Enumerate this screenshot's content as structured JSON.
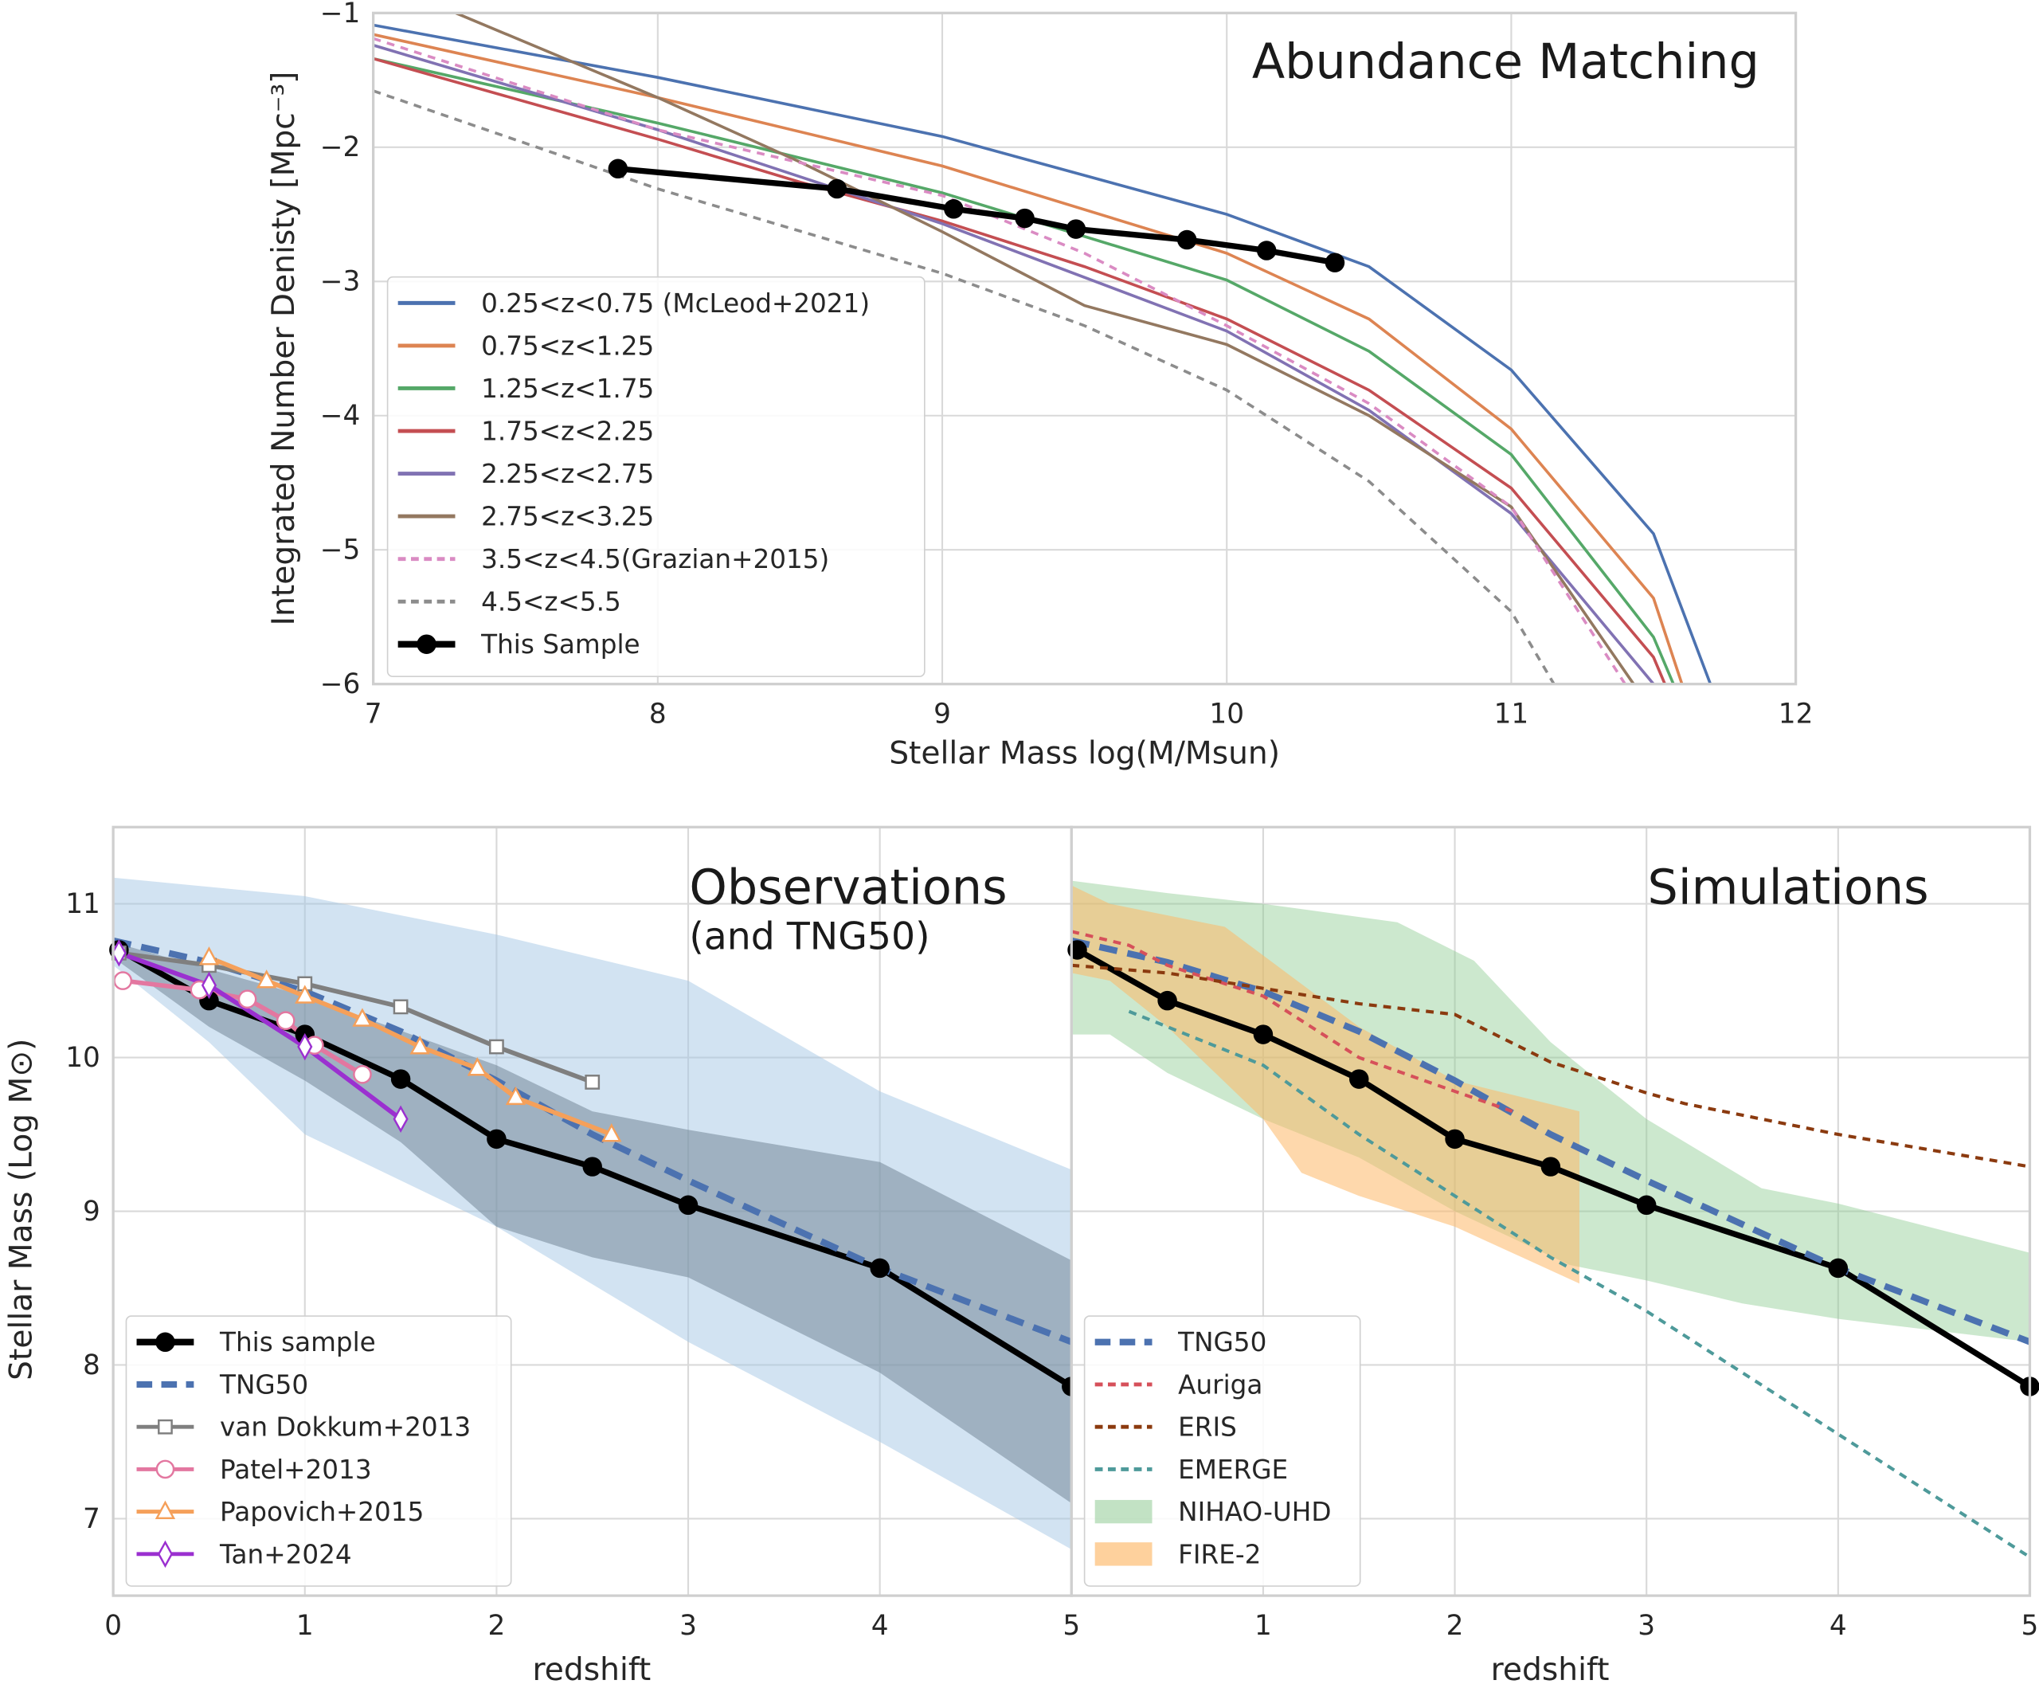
{
  "chart_data": [
    {
      "type": "line",
      "title": "Abundance Matching",
      "xlabel": "Stellar Mass log(M/Msun)",
      "ylabel": "Integrated Number Denisty [Mpc⁻³]",
      "xlim": [
        7,
        12
      ],
      "ylim": [
        -6,
        -1
      ],
      "xticks": [
        7,
        8,
        9,
        10,
        11,
        12
      ],
      "yticks": [
        -6,
        -5,
        -4,
        -3,
        -2,
        -1
      ],
      "grid": true,
      "legend_position": "center-left",
      "series": [
        {
          "name": "0.25<z<0.75 (McLeod+2021)",
          "color": "#4c72b0",
          "style": "solid",
          "x": [
            7,
            8,
            9,
            10,
            10.5,
            11,
            11.5,
            11.7
          ],
          "y": [
            -1.09,
            -1.48,
            -1.92,
            -2.5,
            -2.89,
            -3.66,
            -4.88,
            -6
          ]
        },
        {
          "name": "0.75<z<1.25",
          "color": "#dd8452",
          "style": "solid",
          "x": [
            7,
            8,
            9,
            10,
            10.5,
            11,
            11.5,
            11.6
          ],
          "y": [
            -1.16,
            -1.63,
            -2.14,
            -2.79,
            -3.28,
            -4.1,
            -5.36,
            -6
          ]
        },
        {
          "name": "1.25<z<1.75",
          "color": "#55a868",
          "style": "solid",
          "x": [
            7,
            8,
            9,
            10,
            10.5,
            11,
            11.5,
            11.57
          ],
          "y": [
            -1.34,
            -1.82,
            -2.34,
            -2.99,
            -3.52,
            -4.29,
            -5.65,
            -6
          ]
        },
        {
          "name": "1.75<z<2.25",
          "color": "#c44e52",
          "style": "solid",
          "x": [
            7,
            8,
            8.5,
            9,
            9.5,
            10,
            10.5,
            11,
            11.5,
            11.54
          ],
          "y": [
            -1.34,
            -1.94,
            -2.26,
            -2.55,
            -2.89,
            -3.28,
            -3.81,
            -4.54,
            -5.8,
            -6
          ]
        },
        {
          "name": "2.25<z<2.75",
          "color": "#8172b3",
          "style": "solid",
          "x": [
            7,
            8,
            9,
            10,
            10.5,
            11,
            11.5
          ],
          "y": [
            -1.24,
            -1.87,
            -2.57,
            -3.37,
            -3.96,
            -4.73,
            -6
          ]
        },
        {
          "name": "2.75<z<3.25",
          "color": "#937860",
          "style": "solid",
          "x": [
            7.29,
            8,
            8.5,
            9,
            9.5,
            10,
            10.5,
            11,
            11.43
          ],
          "y": [
            -1,
            -1.63,
            -2.11,
            -2.63,
            -3.18,
            -3.47,
            -4.0,
            -4.68,
            -6
          ]
        },
        {
          "name": "3.5<z<4.5(Grazian+2015)",
          "color": "#da8bc3",
          "style": "dashed",
          "x": [
            7,
            8,
            9,
            9.5,
            10,
            10.5,
            11,
            11.4
          ],
          "y": [
            -1.19,
            -1.87,
            -2.36,
            -2.79,
            -3.33,
            -3.91,
            -4.68,
            -6
          ]
        },
        {
          "name": "4.5<z<5.5",
          "color": "#8c8c8c",
          "style": "dashed",
          "x": [
            7,
            8,
            9,
            9.5,
            10,
            10.5,
            11,
            11.15
          ],
          "y": [
            -1.58,
            -2.31,
            -2.94,
            -3.33,
            -3.81,
            -4.49,
            -5.46,
            -6
          ]
        },
        {
          "name": "This Sample",
          "color": "#000000",
          "style": "solid-marker",
          "marker": "circle",
          "x": [
            7.86,
            8.63,
            9.04,
            9.29,
            9.47,
            9.86,
            10.14,
            10.38
          ],
          "y": [
            -2.16,
            -2.31,
            -2.46,
            -2.53,
            -2.61,
            -2.69,
            -2.77,
            -2.86
          ]
        }
      ]
    },
    {
      "type": "line",
      "title": "Observations",
      "subtitle": "(and TNG50)",
      "xlabel": "redshift",
      "ylabel": "Stellar Mass (Log M⊙)",
      "xlim": [
        0,
        5
      ],
      "ylim": [
        6.5,
        11.5
      ],
      "xticks": [
        0,
        1,
        2,
        3,
        4,
        5
      ],
      "yticks": [
        7,
        8,
        9,
        10,
        11
      ],
      "grid": true,
      "legend_position": "lower-left",
      "bands": [
        {
          "color": "#a6c8e6",
          "opacity": 0.5,
          "x": [
            0,
            1,
            2,
            3,
            4,
            5
          ],
          "upper": [
            11.17,
            11.05,
            10.8,
            10.5,
            9.78,
            9.27
          ],
          "x_lower": [
            0,
            0.5,
            1,
            2,
            3,
            4,
            5
          ],
          "lower": [
            10.6,
            10.1,
            9.5,
            8.9,
            8.15,
            7.5,
            6.8
          ]
        },
        {
          "color": "#6b7f8f",
          "opacity": 0.5,
          "x": [
            0,
            1,
            2,
            2.5,
            3,
            4,
            5
          ],
          "upper": [
            10.75,
            10.4,
            9.95,
            9.65,
            9.53,
            9.32,
            8.68
          ],
          "x_lower": [
            0,
            0.5,
            1,
            1.5,
            2,
            2.5,
            3,
            4,
            5
          ],
          "lower": [
            10.65,
            10.2,
            9.85,
            9.45,
            8.9,
            8.7,
            8.57,
            7.95,
            7.1
          ]
        }
      ],
      "series": [
        {
          "name": "This sample",
          "color": "#000000",
          "style": "solid",
          "marker": "circle",
          "x": [
            0.03,
            0.5,
            1,
            1.5,
            2,
            2.5,
            3,
            4,
            5
          ],
          "y": [
            10.7,
            10.37,
            10.15,
            9.86,
            9.47,
            9.29,
            9.04,
            8.63,
            7.86
          ]
        },
        {
          "name": "TNG50",
          "color": "#4c72b0",
          "style": "bigdash",
          "x": [
            0,
            0.5,
            1,
            1.5,
            2,
            2.5,
            3,
            4,
            5
          ],
          "y": [
            10.76,
            10.62,
            10.43,
            10.17,
            9.85,
            9.5,
            9.2,
            8.63,
            8.15
          ]
        },
        {
          "name": "van Dokkum+2013",
          "color": "#7f7f7f",
          "style": "solid",
          "marker": "square",
          "x": [
            0.03,
            0.5,
            1,
            1.5,
            2,
            2.5
          ],
          "y": [
            10.68,
            10.6,
            10.48,
            10.33,
            10.07,
            9.84
          ]
        },
        {
          "name": "Patel+2013",
          "color": "#e377a0",
          "style": "solid",
          "marker": "circle-open",
          "x": [
            0.05,
            0.45,
            0.7,
            0.9,
            1.05,
            1.3
          ],
          "y": [
            10.5,
            10.44,
            10.38,
            10.24,
            10.08,
            9.89
          ]
        },
        {
          "name": "Papovich+2015",
          "color": "#f5a05a",
          "style": "solid",
          "marker": "triangle",
          "x": [
            0.5,
            0.8,
            1,
            1.3,
            1.6,
            1.9,
            2.1,
            2.6
          ],
          "y": [
            10.65,
            10.5,
            10.4,
            10.25,
            10.07,
            9.93,
            9.74,
            9.5
          ]
        },
        {
          "name": "Tan+2024",
          "color": "#9b30d0",
          "style": "solid",
          "marker": "diamond",
          "x": [
            0.03,
            0.5,
            1,
            1.5
          ],
          "y": [
            10.68,
            10.47,
            10.07,
            9.6
          ]
        }
      ]
    },
    {
      "type": "line",
      "title": "Simulations",
      "xlabel": "redshift",
      "xlim": [
        0,
        5
      ],
      "ylim": [
        6.5,
        11.5
      ],
      "xticks": [
        0,
        1,
        2,
        3,
        4,
        5
      ],
      "grid": true,
      "legend_position": "lower-left",
      "bands": [
        {
          "name": "NIHAO-UHD",
          "color": "#8fcb93",
          "opacity": 0.45,
          "x": [
            0,
            0.5,
            1,
            1.7,
            2.1,
            2.5,
            3,
            3.6,
            4,
            5
          ],
          "upper": [
            11.15,
            11.07,
            11.0,
            10.88,
            10.63,
            10.1,
            9.6,
            9.15,
            9.05,
            8.73
          ],
          "x_lower": [
            0,
            0.2,
            0.5,
            1,
            1.5,
            2,
            2.6,
            3,
            3.5,
            4,
            5
          ],
          "lower": [
            10.15,
            10.15,
            9.9,
            9.6,
            9.35,
            9.0,
            8.65,
            8.55,
            8.4,
            8.3,
            8.15
          ]
        },
        {
          "name": "FIRE-2",
          "color": "#fdb868",
          "opacity": 0.55,
          "x": [
            0,
            0.2,
            0.8,
            1.5,
            2,
            2.65
          ],
          "upper": [
            11.12,
            11.0,
            10.85,
            10.2,
            9.85,
            9.65
          ],
          "x_lower": [
            0,
            0.2,
            0.5,
            1,
            1.2,
            1.5,
            2,
            2.65
          ],
          "lower": [
            10.55,
            10.5,
            10.2,
            9.6,
            9.25,
            9.1,
            8.9,
            8.53
          ]
        }
      ],
      "series": [
        {
          "name": "",
          "color": "#000000",
          "style": "solid",
          "marker": "circle",
          "x": [
            0.03,
            0.5,
            1,
            1.5,
            2,
            2.5,
            3,
            4,
            5
          ],
          "y": [
            10.7,
            10.37,
            10.15,
            9.86,
            9.47,
            9.29,
            9.04,
            8.63,
            7.86
          ]
        },
        {
          "name": "TNG50",
          "color": "#4c72b0",
          "style": "bigdash",
          "x": [
            0,
            0.5,
            1,
            1.5,
            2,
            2.5,
            3,
            4,
            5
          ],
          "y": [
            10.76,
            10.62,
            10.43,
            10.17,
            9.85,
            9.5,
            9.2,
            8.63,
            8.15
          ]
        },
        {
          "name": "Auriga",
          "color": "#d6505a",
          "style": "dashed",
          "x": [
            0,
            0.3,
            0.5,
            1,
            1.5,
            2,
            2.3
          ],
          "y": [
            10.82,
            10.73,
            10.6,
            10.4,
            10.0,
            9.78,
            9.65
          ]
        },
        {
          "name": "ERIS",
          "color": "#8b3a0f",
          "style": "dashed",
          "x": [
            0,
            0.5,
            1,
            1.5,
            2,
            2.5,
            3,
            3.2,
            4,
            5
          ],
          "y": [
            10.6,
            10.55,
            10.45,
            10.35,
            10.28,
            9.97,
            9.77,
            9.7,
            9.5,
            9.29
          ]
        },
        {
          "name": "EMERGE",
          "color": "#4e9a9a",
          "style": "dashed",
          "x": [
            0.3,
            0.6,
            1,
            1.5,
            2,
            2.5,
            3,
            4,
            5
          ],
          "y": [
            10.3,
            10.15,
            9.95,
            9.5,
            9.1,
            8.7,
            8.35,
            7.55,
            6.75
          ]
        }
      ],
      "legend": [
        "TNG50",
        "Auriga",
        "ERIS",
        "EMERGE",
        "NIHAO-UHD",
        "FIRE-2"
      ]
    }
  ]
}
